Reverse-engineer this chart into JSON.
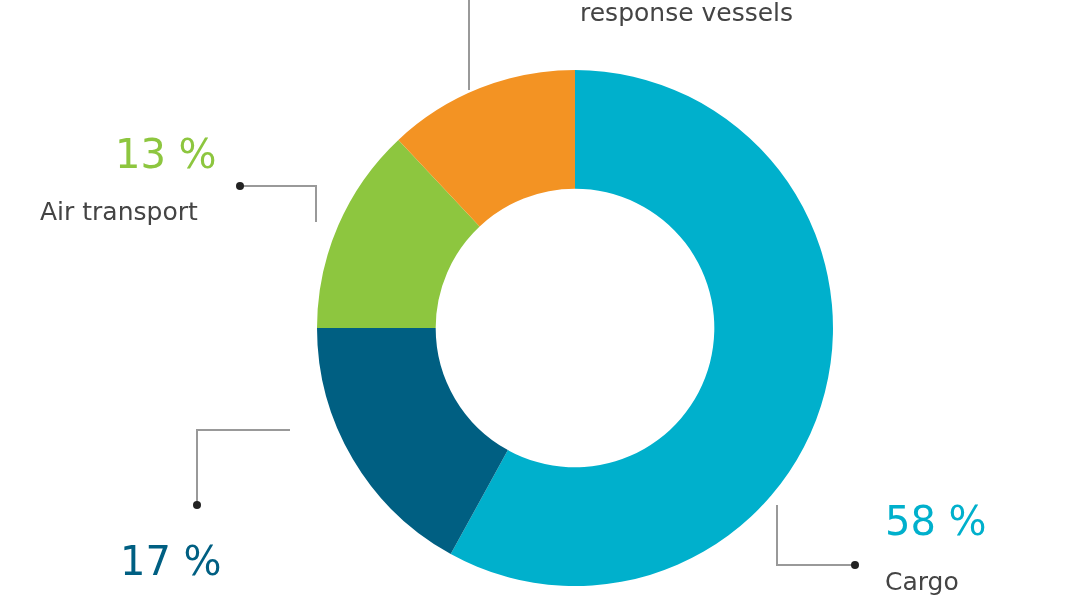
{
  "chart_data": {
    "type": "donut",
    "categories": [
      "Cargo",
      null,
      "Air transport",
      "response vessels"
    ],
    "values": [
      58,
      17,
      13,
      12
    ],
    "colors": [
      "#00b0cc",
      "#005f82",
      "#8dc63f",
      "#f39323"
    ],
    "value_labels": [
      "58 %",
      "17 %",
      "13 %",
      null
    ],
    "legend": false
  }
}
